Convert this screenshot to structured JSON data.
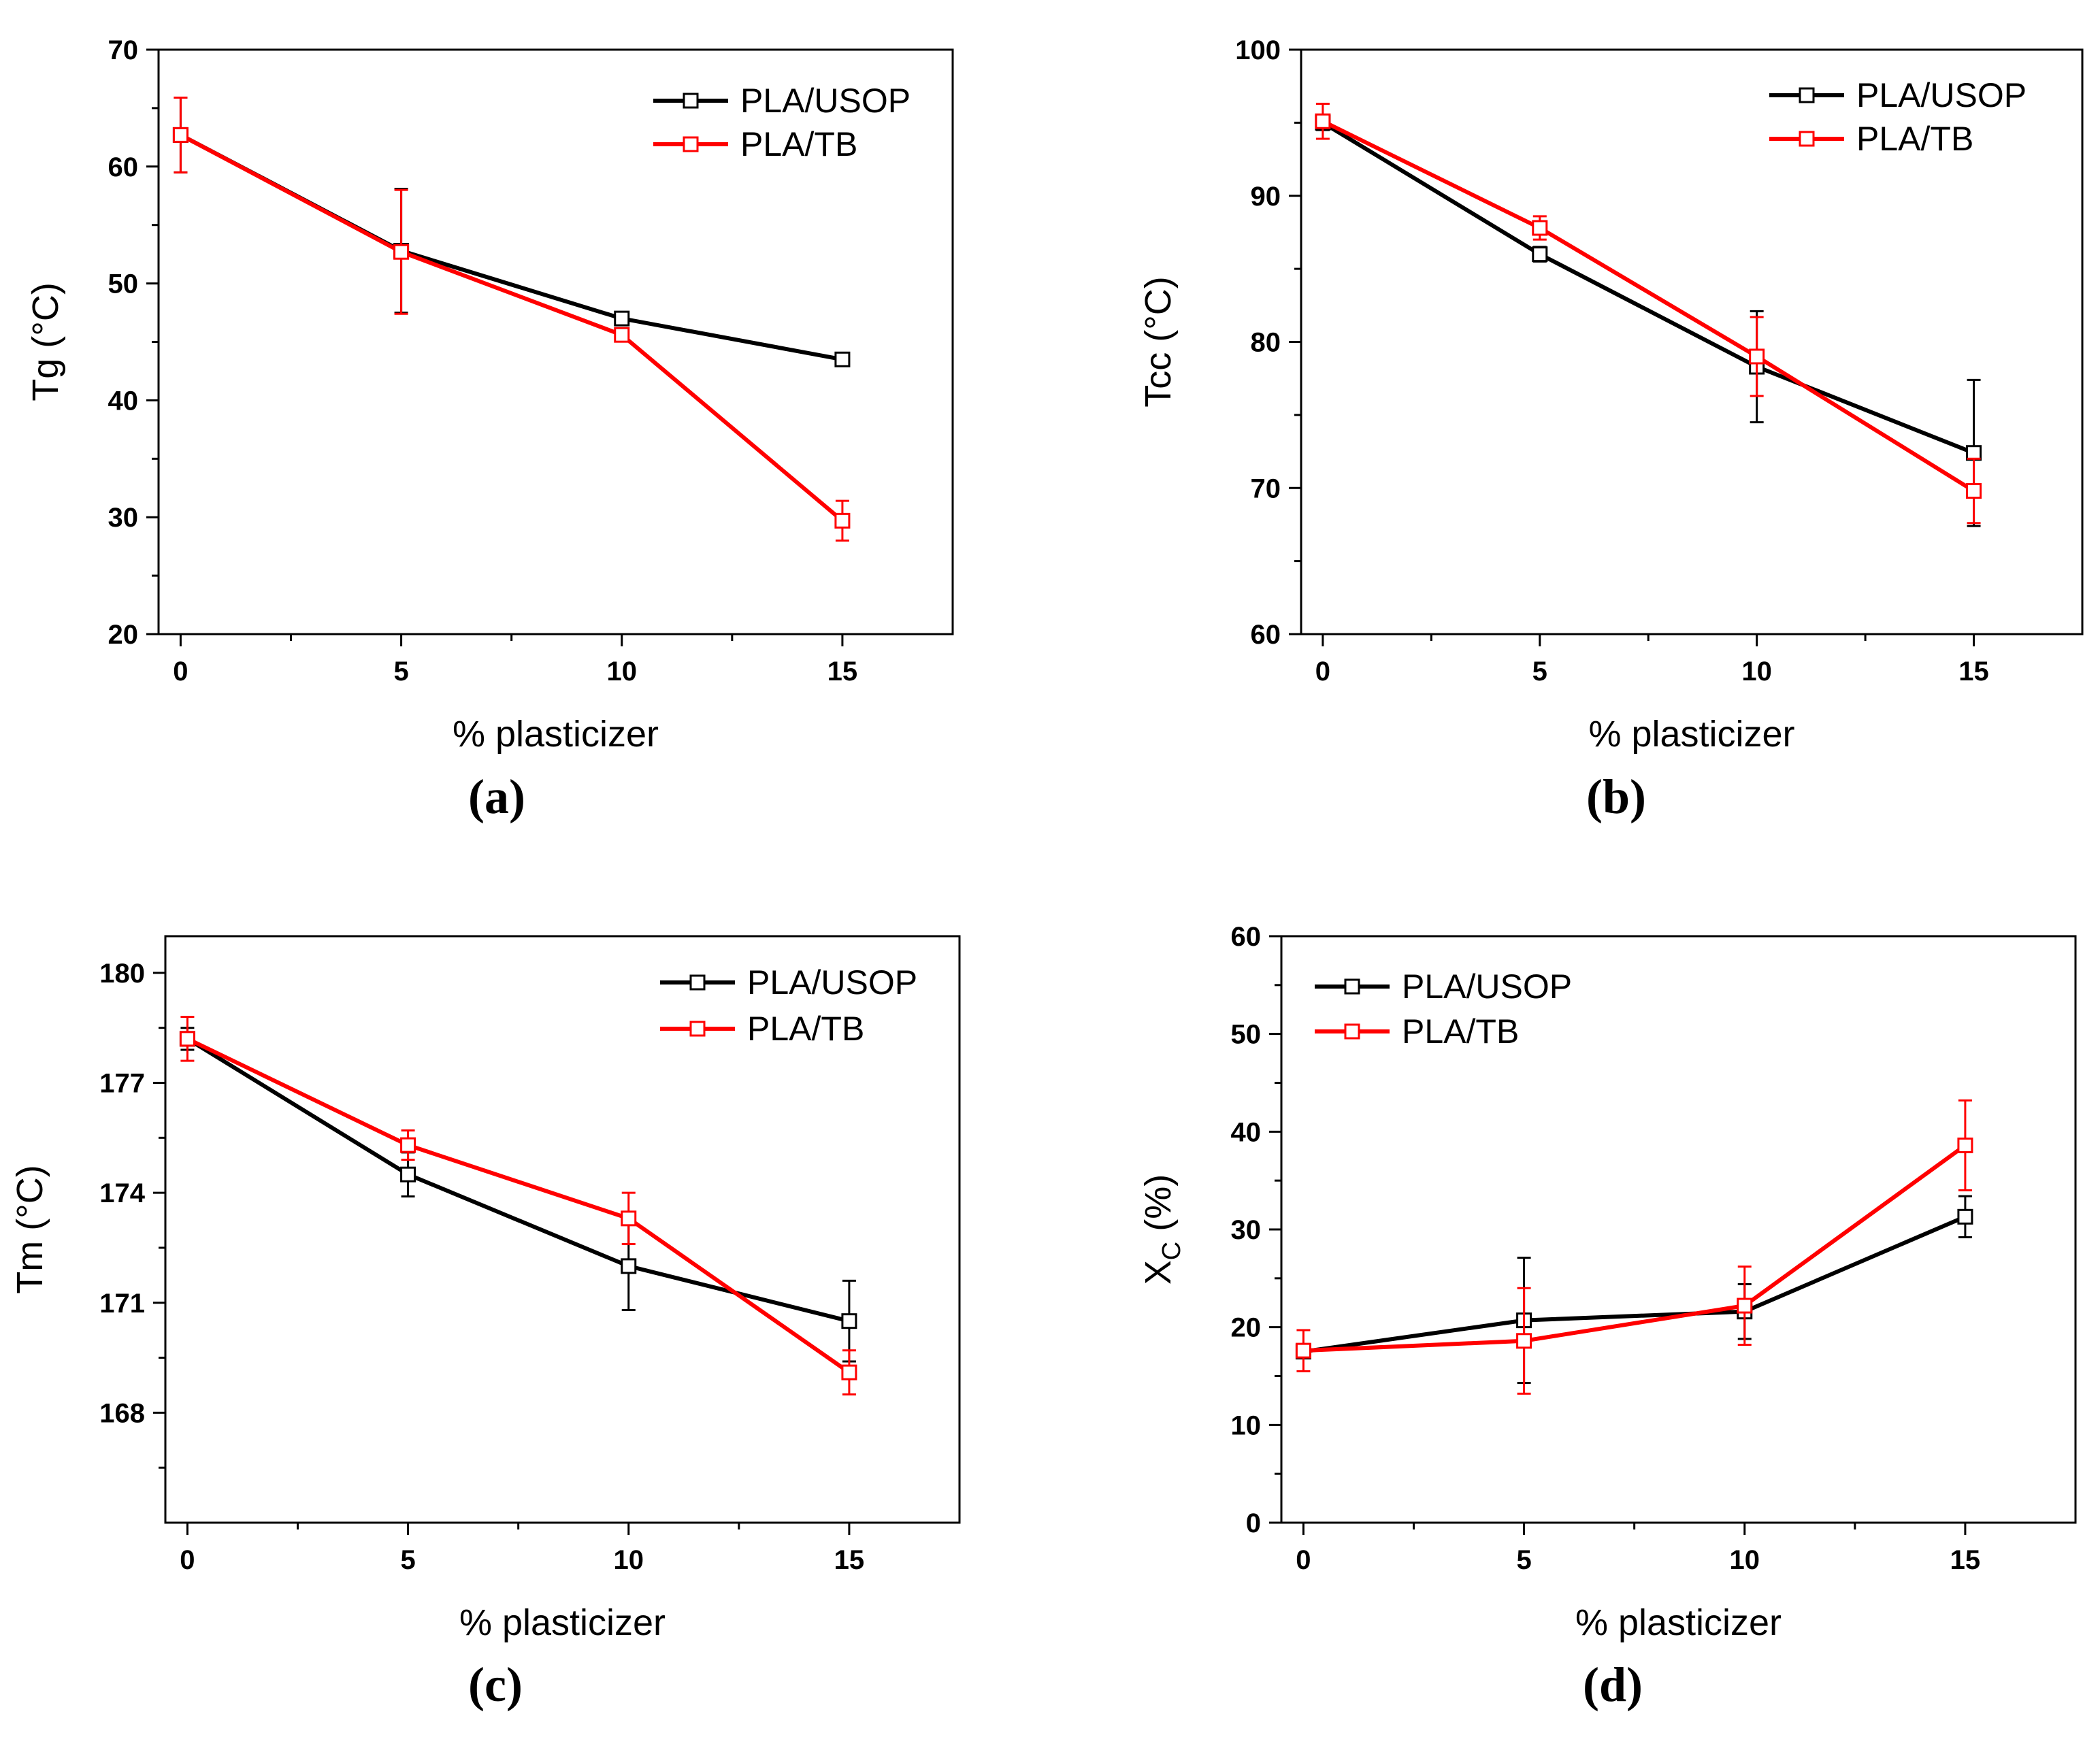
{
  "chart_data": [
    {
      "type": "line",
      "panel_label": "(a)",
      "xlabel": "% plasticizer",
      "ylabel": "Tg (°C)",
      "xlim": [
        -0.5,
        17.5
      ],
      "ylim": [
        20,
        70
      ],
      "x_ticks": [
        0,
        5,
        10,
        15
      ],
      "y_ticks": [
        20,
        30,
        40,
        50,
        60,
        70
      ],
      "legend_position": "top-right",
      "series": [
        {
          "name": "PLA/USOP",
          "color": "#000000",
          "x": [
            0,
            5,
            10,
            15
          ],
          "y": [
            62.7,
            52.8,
            47.0,
            43.5
          ],
          "err": [
            3.2,
            5.3,
            0.4,
            0.4
          ]
        },
        {
          "name": "PLA/TB",
          "color": "#ff0000",
          "x": [
            0,
            5,
            10,
            15
          ],
          "y": [
            62.7,
            52.7,
            45.6,
            29.7
          ],
          "err": [
            3.2,
            5.3,
            0.4,
            1.7
          ]
        }
      ]
    },
    {
      "type": "line",
      "panel_label": "(b)",
      "xlabel": "% plasticizer",
      "ylabel": "Tcc (°C)",
      "xlim": [
        -0.5,
        17.5
      ],
      "ylim": [
        60,
        100
      ],
      "x_ticks": [
        0,
        5,
        10,
        15
      ],
      "y_ticks": [
        60,
        70,
        80,
        90,
        100
      ],
      "legend_position": "top-right",
      "series": [
        {
          "name": "PLA/USOP",
          "color": "#000000",
          "x": [
            0,
            5,
            10,
            15
          ],
          "y": [
            95.0,
            86.0,
            78.3,
            72.4
          ],
          "err": [
            0.5,
            0.5,
            3.8,
            5.0
          ]
        },
        {
          "name": "PLA/TB",
          "color": "#ff0000",
          "x": [
            0,
            5,
            10,
            15
          ],
          "y": [
            95.1,
            87.8,
            79.0,
            69.8
          ],
          "err": [
            1.2,
            0.8,
            2.7,
            2.2
          ]
        }
      ]
    },
    {
      "type": "line",
      "panel_label": "(c)",
      "xlabel": "% plasticizer",
      "ylabel": "Tm (°C)",
      "xlim": [
        -0.5,
        17.5
      ],
      "ylim": [
        165,
        181
      ],
      "x_ticks": [
        0,
        5,
        10,
        15
      ],
      "y_ticks": [
        168,
        171,
        174,
        177,
        180
      ],
      "legend_position": "top-right",
      "series": [
        {
          "name": "PLA/USOP",
          "color": "#000000",
          "x": [
            0,
            5,
            10,
            15
          ],
          "y": [
            178.2,
            174.5,
            172.0,
            170.5
          ],
          "err": [
            0.3,
            0.6,
            1.2,
            1.1
          ]
        },
        {
          "name": "PLA/TB",
          "color": "#ff0000",
          "x": [
            0,
            5,
            10,
            15
          ],
          "y": [
            178.2,
            175.3,
            173.3,
            169.1
          ],
          "err": [
            0.6,
            0.4,
            0.7,
            0.6
          ]
        }
      ]
    },
    {
      "type": "line",
      "panel_label": "(d)",
      "xlabel": "% plasticizer",
      "ylabel": "X",
      "ylabel_subscript": "C",
      "ylabel_suffix": " (%)",
      "xlim": [
        -0.5,
        17.5
      ],
      "ylim": [
        0,
        60
      ],
      "x_ticks": [
        0,
        5,
        10,
        15
      ],
      "y_ticks": [
        0,
        10,
        20,
        30,
        40,
        50,
        60
      ],
      "legend_position": "top-left",
      "series": [
        {
          "name": "PLA/USOP",
          "color": "#000000",
          "x": [
            0,
            5,
            10,
            15
          ],
          "y": [
            17.5,
            20.7,
            21.6,
            31.3
          ],
          "err": [
            0.5,
            6.4,
            2.8,
            2.1
          ]
        },
        {
          "name": "PLA/TB",
          "color": "#ff0000",
          "x": [
            0,
            5,
            10,
            15
          ],
          "y": [
            17.6,
            18.6,
            22.2,
            38.6
          ],
          "err": [
            2.1,
            5.4,
            4.0,
            4.6
          ]
        }
      ]
    }
  ]
}
